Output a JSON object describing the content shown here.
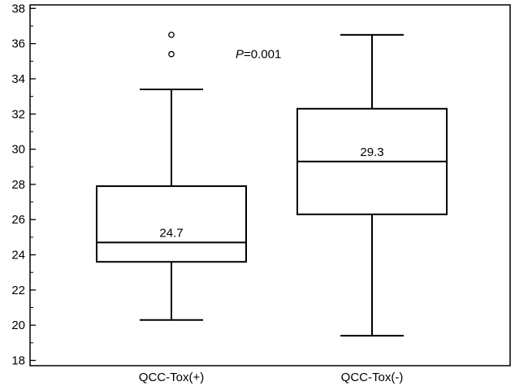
{
  "chart_data": {
    "type": "box",
    "categories": [
      "QCC-Tox(+)",
      "QCC-Tox(-)"
    ],
    "ylim": [
      17.7,
      38.2
    ],
    "yticks": [
      18,
      20,
      22,
      24,
      26,
      28,
      30,
      32,
      34,
      36,
      38
    ],
    "ytick_labels": [
      "18",
      "20",
      "22",
      "24",
      "26",
      "28",
      "30",
      "32",
      "34",
      "36",
      "38"
    ],
    "boxes": [
      {
        "category": "QCC-Tox(+)",
        "whisker_low": 20.3,
        "q1": 23.6,
        "median": 24.7,
        "q3": 27.9,
        "whisker_high": 33.4,
        "outliers": [
          35.4,
          36.5
        ],
        "median_label": "24.7"
      },
      {
        "category": "QCC-Tox(-)",
        "whisker_low": 19.4,
        "q1": 26.3,
        "median": 29.3,
        "q3": 32.3,
        "whisker_high": 36.5,
        "outliers": [],
        "median_label": "29.3"
      }
    ],
    "annotations": [
      {
        "text_italic": "P",
        "text_rest": "=0.001",
        "y": 35.4
      }
    ],
    "grid": false,
    "legend": "none"
  }
}
